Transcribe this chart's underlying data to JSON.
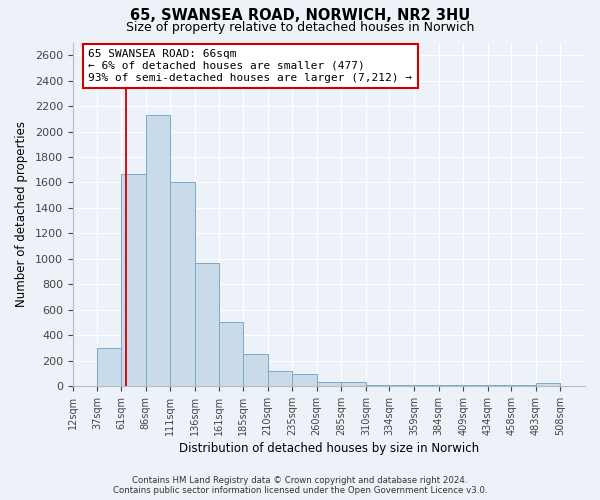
{
  "title": "65, SWANSEA ROAD, NORWICH, NR2 3HU",
  "subtitle": "Size of property relative to detached houses in Norwich",
  "xlabel": "Distribution of detached houses by size in Norwich",
  "ylabel": "Number of detached properties",
  "bin_labels": [
    "12sqm",
    "37sqm",
    "61sqm",
    "86sqm",
    "111sqm",
    "136sqm",
    "161sqm",
    "185sqm",
    "210sqm",
    "235sqm",
    "260sqm",
    "285sqm",
    "310sqm",
    "334sqm",
    "359sqm",
    "384sqm",
    "409sqm",
    "434sqm",
    "458sqm",
    "483sqm",
    "508sqm"
  ],
  "bin_left_edges": [
    12,
    37,
    61,
    86,
    111,
    136,
    161,
    185,
    210,
    235,
    260,
    285,
    310,
    334,
    359,
    384,
    409,
    434,
    458,
    483,
    508
  ],
  "bar_heights": [
    0,
    300,
    1670,
    2130,
    1600,
    970,
    500,
    250,
    120,
    95,
    35,
    35,
    5,
    5,
    5,
    5,
    5,
    5,
    5,
    20,
    0
  ],
  "bar_color": "#c9daea",
  "bar_edge_color": "#7aaac8",
  "property_line_x": 66,
  "property_line_color": "#cc0000",
  "annotation_text": "65 SWANSEA ROAD: 66sqm\n← 6% of detached houses are smaller (477)\n93% of semi-detached houses are larger (7,212) →",
  "annotation_box_color": "white",
  "annotation_box_edge_color": "#cc0000",
  "ylim": [
    0,
    2700
  ],
  "yticks": [
    0,
    200,
    400,
    600,
    800,
    1000,
    1200,
    1400,
    1600,
    1800,
    2000,
    2200,
    2400,
    2600
  ],
  "xlim_left": 12,
  "xlim_right": 533,
  "background_color": "#edf2f8",
  "grid_color": "white",
  "footer_line1": "Contains HM Land Registry data © Crown copyright and database right 2024.",
  "footer_line2": "Contains public sector information licensed under the Open Government Licence v3.0."
}
